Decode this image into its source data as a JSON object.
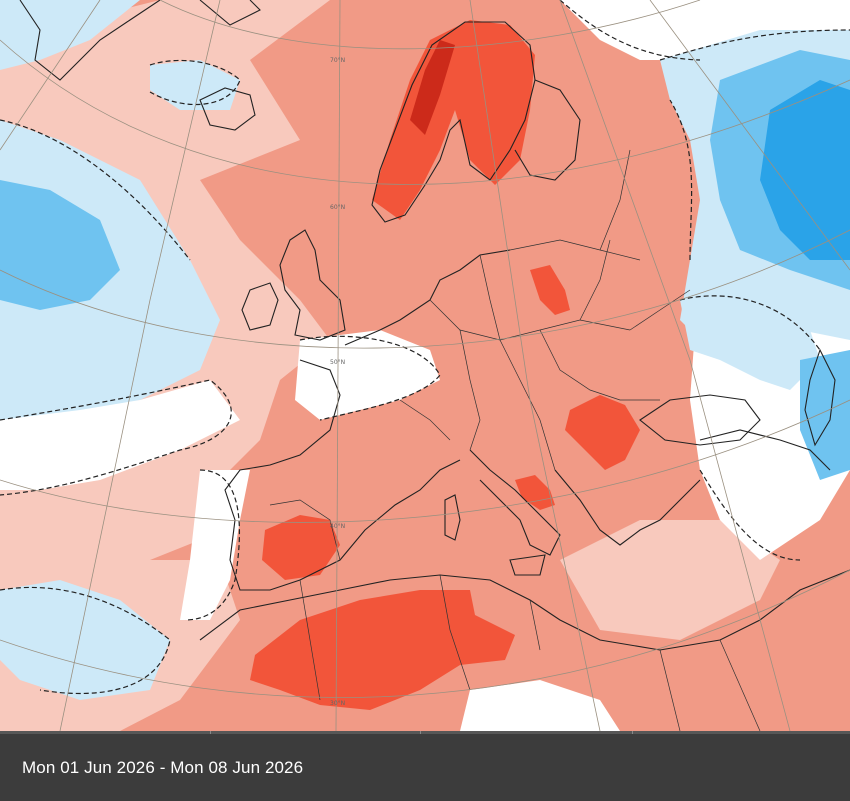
{
  "map": {
    "lat_labels": [
      "70°N",
      "60°N",
      "50°N",
      "40°N",
      "30°N"
    ],
    "colors": {
      "cold_strong": "#2aa3e8",
      "cold_medium": "#6fc3f0",
      "cold_light": "#cde9f8",
      "neutral": "#ffffff",
      "warm_light": "#f8c9bd",
      "warm_medium": "#f19a86",
      "warm_strong": "#f2553a",
      "warm_extreme": "#cc2a1a",
      "coastline": "#222222",
      "graticule": "#9a9080"
    }
  },
  "footer": {
    "date_range": "Mon 01 Jun 2026 - Mon 08 Jun 2026"
  }
}
